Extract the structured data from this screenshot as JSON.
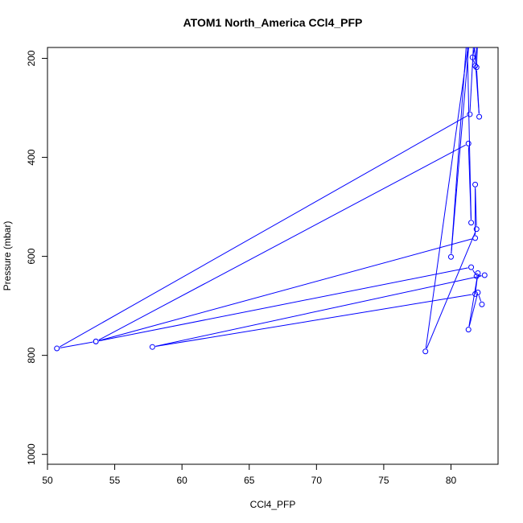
{
  "chart_data": {
    "type": "line",
    "title": "ATOM1 North_America CCl4_PFP",
    "xlabel": "CCl4_PFP",
    "ylabel": "Pressure (mbar)",
    "xlim": [
      50,
      83.5
    ],
    "ylim": [
      1020,
      178
    ],
    "y_reversed": true,
    "xticks": [
      50,
      55,
      60,
      65,
      70,
      75,
      80
    ],
    "yticks": [
      200,
      400,
      600,
      800,
      1000
    ],
    "series": [
      {
        "color": "#0000ff",
        "marker": "open-circle",
        "points": [
          {
            "x": 82.0,
            "y": 150
          },
          {
            "x": 81.6,
            "y": 198
          },
          {
            "x": 81.8,
            "y": 215
          },
          {
            "x": 82.0,
            "y": 150
          },
          {
            "x": 81.9,
            "y": 218
          },
          {
            "x": 82.1,
            "y": 318
          },
          {
            "x": 81.7,
            "y": 160
          },
          {
            "x": 81.4,
            "y": 313
          },
          {
            "x": 50.7,
            "y": 786
          },
          {
            "x": 53.6,
            "y": 772
          },
          {
            "x": 81.3,
            "y": 372
          },
          {
            "x": 81.5,
            "y": 532
          },
          {
            "x": 81.2,
            "y": 150
          },
          {
            "x": 80.0,
            "y": 601
          },
          {
            "x": 81.4,
            "y": 150
          },
          {
            "x": 78.1,
            "y": 792
          },
          {
            "x": 81.9,
            "y": 545
          },
          {
            "x": 81.8,
            "y": 455
          },
          {
            "x": 81.8,
            "y": 563
          },
          {
            "x": 53.6,
            "y": 772
          },
          {
            "x": 81.5,
            "y": 622
          },
          {
            "x": 81.9,
            "y": 640
          },
          {
            "x": 82.5,
            "y": 638
          },
          {
            "x": 57.8,
            "y": 783
          },
          {
            "x": 81.8,
            "y": 676
          },
          {
            "x": 82.0,
            "y": 634
          },
          {
            "x": 81.3,
            "y": 748
          },
          {
            "x": 82.0,
            "y": 673
          },
          {
            "x": 82.3,
            "y": 697
          }
        ]
      }
    ]
  }
}
